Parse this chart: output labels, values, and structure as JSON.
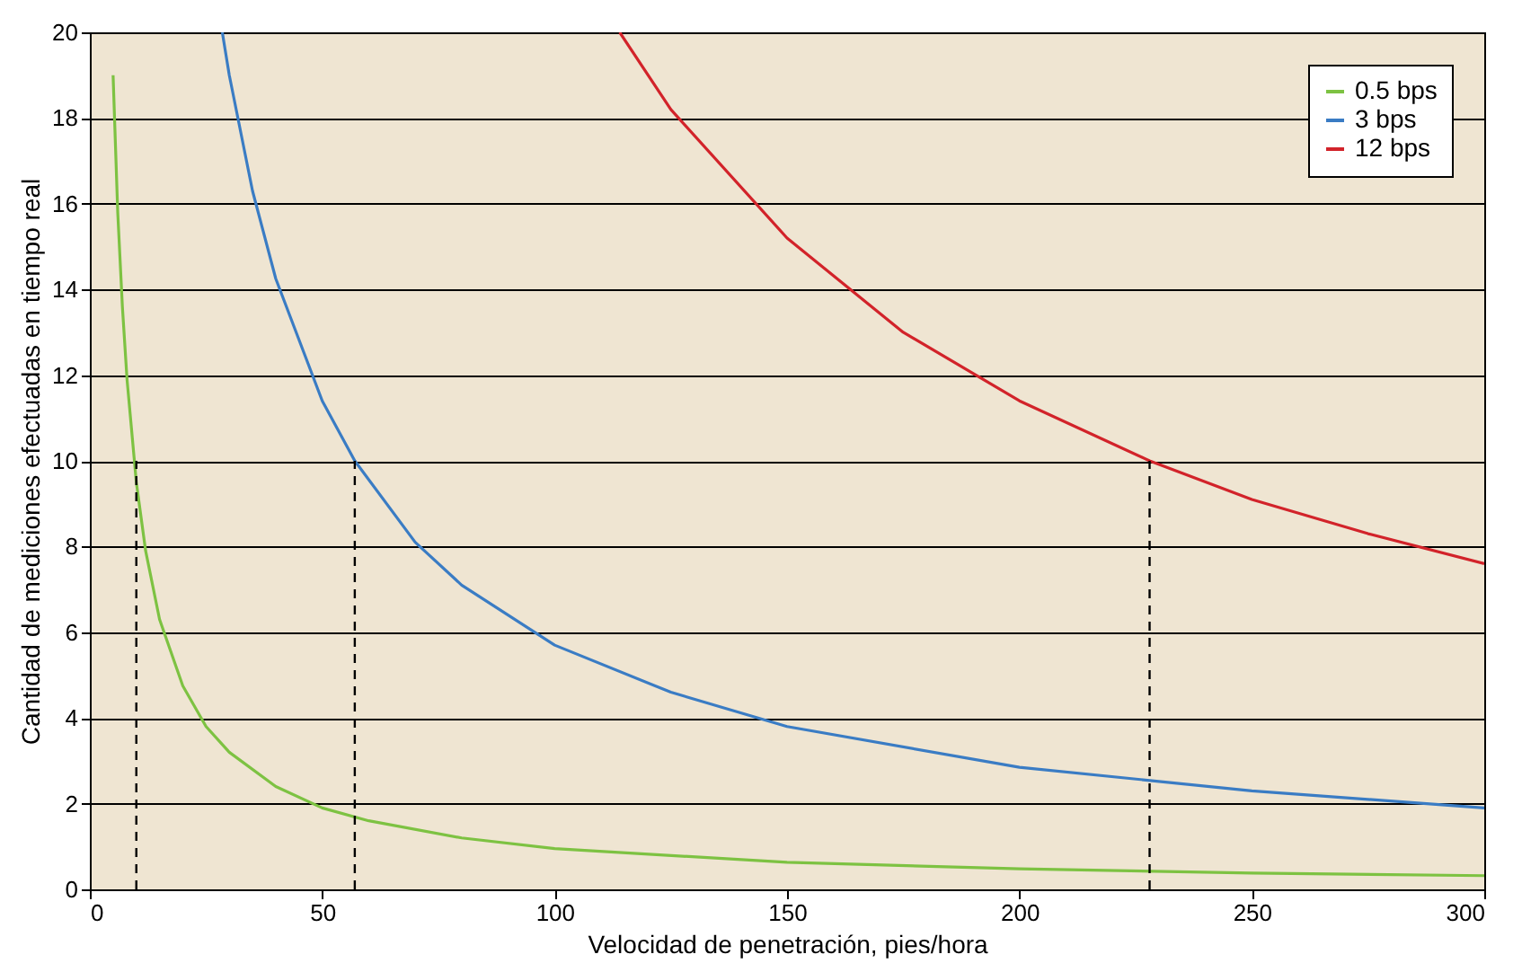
{
  "chart_data": {
    "type": "line",
    "xlabel": "Velocidad de penetración, pies/hora",
    "ylabel": "Cantidad de mediciones efectuadas en tiempo real",
    "xlim": [
      0,
      300
    ],
    "xticks": [
      0,
      50,
      100,
      150,
      200,
      250,
      300
    ],
    "ylim": [
      0,
      20
    ],
    "yticks": [
      0,
      2,
      4,
      6,
      8,
      10,
      12,
      14,
      16,
      18,
      20
    ],
    "grid": "y",
    "legend": "top right",
    "series": [
      {
        "name": "0.5 bps",
        "color": "#7dc242",
        "x": [
          5,
          6,
          7,
          8,
          10,
          12,
          15,
          20,
          25,
          30,
          40,
          50,
          60,
          80,
          100,
          150,
          200,
          250,
          300
        ],
        "values": [
          19,
          15.8,
          13.6,
          11.9,
          9.5,
          7.9,
          6.3,
          4.75,
          3.8,
          3.2,
          2.4,
          1.9,
          1.6,
          1.2,
          0.95,
          0.63,
          0.48,
          0.38,
          0.32
        ]
      },
      {
        "name": "3 bps",
        "color": "#3a7cc4",
        "x": [
          28.5,
          30,
          35,
          40,
          50,
          57,
          70,
          80,
          100,
          125,
          150,
          200,
          250,
          300
        ],
        "values": [
          20,
          19,
          16.3,
          14.25,
          11.4,
          10,
          8.1,
          7.1,
          5.7,
          4.6,
          3.8,
          2.85,
          2.3,
          1.9
        ]
      },
      {
        "name": "12 bps",
        "color": "#d2232a",
        "x": [
          114,
          125,
          150,
          175,
          200,
          228,
          250,
          275,
          300
        ],
        "values": [
          20,
          18.2,
          15.2,
          13,
          11.4,
          10,
          9.1,
          8.3,
          7.6
        ]
      },
      {
        "color": "#000000",
        "line_style": "dashed",
        "x": [
          10,
          10
        ],
        "values": [
          0,
          10
        ]
      },
      {
        "color": "#000000",
        "line_style": "dashed",
        "x": [
          57,
          57
        ],
        "values": [
          0,
          10
        ]
      },
      {
        "color": "#000000",
        "line_style": "dashed",
        "x": [
          228,
          228
        ],
        "values": [
          0,
          10
        ]
      }
    ]
  }
}
